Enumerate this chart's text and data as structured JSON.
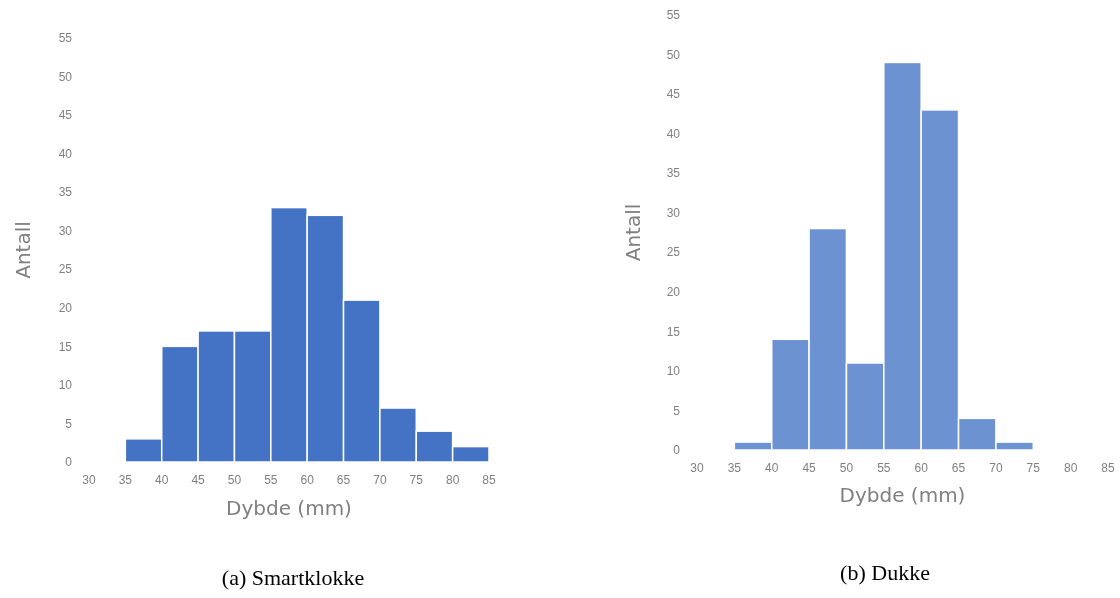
{
  "chart_data": [
    {
      "type": "histogram",
      "title": "(a) Smartklokke",
      "xlabel": "Dybde (mm)",
      "ylabel": "Antall",
      "bins": [
        35,
        40,
        45,
        50,
        55,
        60,
        65,
        70,
        75,
        80,
        85
      ],
      "values": [
        3,
        15,
        17,
        17,
        33,
        32,
        21,
        7,
        4,
        2
      ],
      "color": "#4472c4",
      "xlim": [
        30,
        85
      ],
      "xticks": [
        30,
        35,
        40,
        45,
        50,
        55,
        60,
        65,
        70,
        75,
        80,
        85
      ],
      "ylim": [
        0,
        55
      ],
      "yticks": [
        0,
        5,
        10,
        15,
        20,
        25,
        30,
        35,
        40,
        45,
        50,
        55
      ],
      "grid": false
    },
    {
      "type": "histogram",
      "title": "(b) Dukke",
      "xlabel": "Dybde (mm)",
      "ylabel": "Antall",
      "bins": [
        35,
        40,
        45,
        50,
        55,
        60,
        65,
        70,
        75
      ],
      "values": [
        1,
        14,
        28,
        11,
        49,
        43,
        4,
        1
      ],
      "color": "#6d92d2",
      "xlim": [
        30,
        85
      ],
      "xticks": [
        30,
        35,
        40,
        45,
        50,
        55,
        60,
        65,
        70,
        75,
        80,
        85
      ],
      "ylim": [
        0,
        55
      ],
      "yticks": [
        0,
        5,
        10,
        15,
        20,
        25,
        30,
        35,
        40,
        45,
        50,
        55
      ],
      "grid": false
    }
  ]
}
